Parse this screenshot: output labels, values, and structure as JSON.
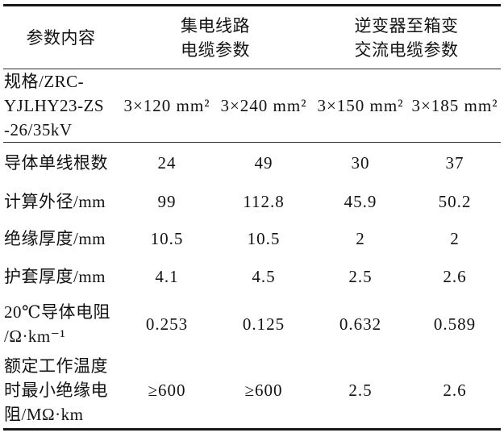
{
  "page": {
    "background": "#ffffff",
    "text_color": "#121212",
    "rule_color": "#181818"
  },
  "table": {
    "header": {
      "parameter_label": "参数内容",
      "group_collector": "集电线路\n电缆参数",
      "group_inverter": "逆变器至箱变\n交流电缆参数"
    },
    "rows": [
      {
        "label": "规格/ZRC-\nYJLHY23-ZS\n-26/35kV",
        "values": [
          "3×120 mm²",
          "3×240 mm²",
          "3×150 mm²",
          "3×185 mm²"
        ]
      },
      {
        "label": "导体单线根数",
        "values": [
          "24",
          "49",
          "30",
          "37"
        ]
      },
      {
        "label": "计算外径/mm",
        "values": [
          "99",
          "112.8",
          "45.9",
          "50.2"
        ]
      },
      {
        "label": "绝缘厚度/mm",
        "values": [
          "10.5",
          "10.5",
          "2",
          "2"
        ]
      },
      {
        "label": "护套厚度/mm",
        "values": [
          "4.1",
          "4.5",
          "2.5",
          "2.6"
        ]
      },
      {
        "label": "20℃导体电阻\n/Ω·km⁻¹",
        "values": [
          "0.253",
          "0.125",
          "0.632",
          "0.589"
        ]
      },
      {
        "label": "额定工作温度\n时最小绝缘电\n阻/MΩ·km",
        "values": [
          "≥600",
          "≥600",
          "2.5",
          "2.6"
        ]
      }
    ]
  }
}
